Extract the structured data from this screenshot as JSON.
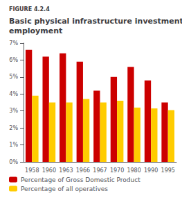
{
  "chart_data": {
    "type": "bar",
    "title": "Basic physical infrastructure investment and\nemployment",
    "annotations": [
      "FIGURE 4.2.4"
    ],
    "categories": [
      "1958",
      "1960",
      "1963",
      "1966",
      "1967",
      "1970",
      "1980",
      "1990",
      "1995"
    ],
    "series": [
      {
        "name": "Percentage of Gross Domestic Product",
        "color": "#cc0000",
        "values": [
          6.6,
          6.2,
          6.4,
          5.9,
          4.2,
          5.0,
          5.6,
          4.8,
          3.5
        ]
      },
      {
        "name": "Percentage of all operatives",
        "color": "#ffcc00",
        "values": [
          3.9,
          3.5,
          3.5,
          3.7,
          3.5,
          3.6,
          3.2,
          3.15,
          3.05
        ]
      }
    ],
    "ylim": [
      0,
      7
    ],
    "yticks": [
      {
        "value": 0,
        "label": "0%"
      },
      {
        "value": 1,
        "label": "1%"
      },
      {
        "value": 2,
        "label": "2%"
      },
      {
        "value": 3,
        "label": "3%"
      },
      {
        "value": 4,
        "label": "4%"
      },
      {
        "value": 5,
        "label": "5%"
      },
      {
        "value": 6,
        "label": "6%"
      },
      {
        "value": 7,
        "label": "7%"
      }
    ],
    "grid": false,
    "legend": "lower left"
  }
}
